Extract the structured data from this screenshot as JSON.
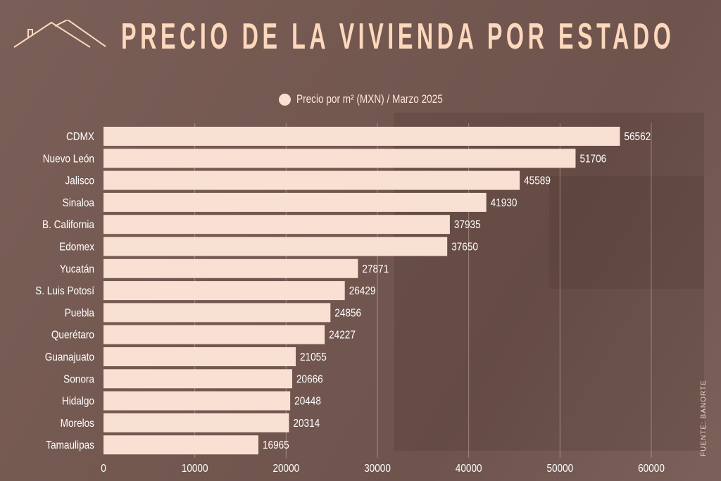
{
  "title": "PRECIO DE LA VIVIENDA POR ESTADO",
  "source": "FUENTE: BANORTE",
  "colors": {
    "bar": "#f8e1d2",
    "title": "#fdd8bd",
    "text": "#ffffff",
    "background": "#775c55"
  },
  "chart_data": {
    "type": "bar",
    "orientation": "horizontal",
    "title": "PRECIO DE LA VIVIENDA POR ESTADO",
    "legend": [
      "Precio por m² (MXN) / Marzo 2025"
    ],
    "legend_position": "top-center",
    "categories": [
      "CDMX",
      "Nuevo León",
      "Jalisco",
      "Sinaloa",
      "B. California",
      "Edomex",
      "Yucatán",
      "S. Luis Potosí",
      "Puebla",
      "Querétaro",
      "Guanajuato",
      "Sonora",
      "Hidalgo",
      "Morelos",
      "Tamaulipas"
    ],
    "series": [
      {
        "name": "Precio por m² (MXN) / Marzo 2025",
        "values": [
          56562,
          51706,
          45589,
          41930,
          37935,
          37650,
          27871,
          26429,
          24856,
          24227,
          21055,
          20666,
          20448,
          20314,
          16965
        ]
      }
    ],
    "xlim": [
      0,
      60000
    ],
    "xticks": [
      0,
      10000,
      20000,
      30000,
      40000,
      50000,
      60000
    ],
    "xlabel": "",
    "ylabel": "",
    "grid": true
  }
}
